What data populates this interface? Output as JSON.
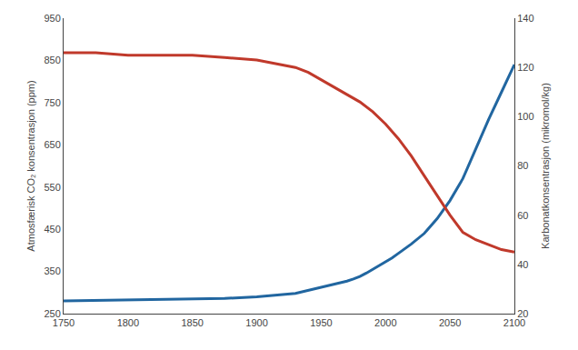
{
  "chart_data": {
    "type": "line",
    "ylabel": "Atmosfærisk CO₂ konsentrasjon (ppm)",
    "y2label": "Karbonatkonsentrasjon (mikromol/kg)",
    "xlim": [
      1750,
      2100
    ],
    "xticks": [
      1750,
      1800,
      1850,
      1900,
      1950,
      2000,
      2050,
      2100
    ],
    "ylim": [
      250,
      950
    ],
    "yticks": [
      250,
      350,
      450,
      550,
      650,
      750,
      850,
      950
    ],
    "y2lim": [
      20,
      140
    ],
    "y2ticks": [
      20,
      40,
      60,
      80,
      100,
      120,
      140
    ],
    "grid": false,
    "series": [
      {
        "color": "#2166a0",
        "axis": "y",
        "x": [
          1750,
          1775,
          1800,
          1825,
          1850,
          1875,
          1900,
          1910,
          1920,
          1930,
          1940,
          1950,
          1955,
          1960,
          1965,
          1970,
          1975,
          1980,
          1985,
          1990,
          1995,
          2000,
          2005,
          2010,
          2020,
          2030,
          2040,
          2050,
          2060,
          2070,
          2080,
          2090,
          2100
        ],
        "values": [
          280,
          281,
          282,
          283,
          284,
          286,
          290,
          292,
          295,
          298,
          305,
          313,
          317,
          320,
          323,
          327,
          332,
          338,
          346,
          355,
          364,
          372,
          382,
          393,
          415,
          440,
          475,
          518,
          570,
          640,
          710,
          775,
          840
        ]
      },
      {
        "color": "#c0392b",
        "axis": "y2",
        "x": [
          1750,
          1775,
          1800,
          1825,
          1850,
          1875,
          1900,
          1910,
          1920,
          1930,
          1940,
          1950,
          1960,
          1970,
          1980,
          1990,
          2000,
          2010,
          2020,
          2030,
          2040,
          2050,
          2060,
          2070,
          2080,
          2090,
          2100
        ],
        "values": [
          126,
          126,
          125,
          125,
          125,
          124,
          123,
          122,
          121,
          120,
          118,
          115,
          112,
          109,
          106,
          102,
          97,
          91,
          84,
          76,
          68,
          60,
          53,
          50,
          48,
          46,
          45
        ]
      }
    ]
  }
}
